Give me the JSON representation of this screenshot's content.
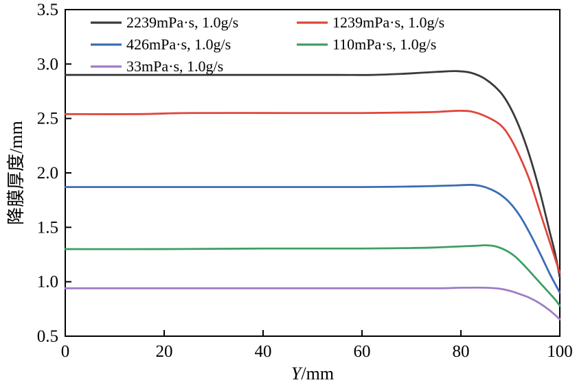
{
  "chart_data": {
    "type": "line",
    "title": "",
    "xlabel_italic": "Y",
    "xlabel_rest": "/mm",
    "ylabel": "降膜厚度/mm",
    "xlim": [
      0,
      100
    ],
    "ylim": [
      0.5,
      3.5
    ],
    "xticks": [
      0,
      20,
      40,
      60,
      80,
      100
    ],
    "yticks": [
      0.5,
      1.0,
      1.5,
      2.0,
      2.5,
      3.0,
      3.5
    ],
    "grid": false,
    "legend_position": "top-inside-two-columns",
    "series": [
      {
        "name": "2239mPa·s, 1.0g/s",
        "color": "#3a3a3a",
        "points": [
          [
            0,
            2.9
          ],
          [
            20,
            2.9
          ],
          [
            40,
            2.9
          ],
          [
            55,
            2.9
          ],
          [
            62,
            2.9
          ],
          [
            68,
            2.91
          ],
          [
            72,
            2.92
          ],
          [
            76,
            2.93
          ],
          [
            79,
            2.935
          ],
          [
            82,
            2.92
          ],
          [
            85,
            2.86
          ],
          [
            88,
            2.74
          ],
          [
            90,
            2.6
          ],
          [
            92,
            2.4
          ],
          [
            94,
            2.14
          ],
          [
            96,
            1.82
          ],
          [
            98,
            1.45
          ],
          [
            99,
            1.27
          ],
          [
            100,
            1.04
          ]
        ]
      },
      {
        "name": "1239mPa·s, 1.0g/s",
        "color": "#e0453a",
        "points": [
          [
            0,
            2.54
          ],
          [
            15,
            2.54
          ],
          [
            25,
            2.55
          ],
          [
            45,
            2.55
          ],
          [
            60,
            2.55
          ],
          [
            70,
            2.555
          ],
          [
            75,
            2.56
          ],
          [
            79,
            2.57
          ],
          [
            82,
            2.565
          ],
          [
            85,
            2.52
          ],
          [
            88,
            2.44
          ],
          [
            90,
            2.32
          ],
          [
            92,
            2.14
          ],
          [
            94,
            1.92
          ],
          [
            96,
            1.64
          ],
          [
            98,
            1.36
          ],
          [
            100,
            1.08
          ]
        ]
      },
      {
        "name": "426mPa·s, 1.0g/s",
        "color": "#3b6cb4",
        "points": [
          [
            0,
            1.87
          ],
          [
            20,
            1.87
          ],
          [
            40,
            1.87
          ],
          [
            60,
            1.87
          ],
          [
            70,
            1.875
          ],
          [
            75,
            1.88
          ],
          [
            79,
            1.885
          ],
          [
            82,
            1.89
          ],
          [
            84,
            1.88
          ],
          [
            86,
            1.85
          ],
          [
            88,
            1.8
          ],
          [
            90,
            1.72
          ],
          [
            92,
            1.6
          ],
          [
            94,
            1.44
          ],
          [
            96,
            1.26
          ],
          [
            98,
            1.07
          ],
          [
            100,
            0.9
          ]
        ]
      },
      {
        "name": "110mPa·s, 1.0g/s",
        "color": "#3f9e63",
        "points": [
          [
            0,
            1.3
          ],
          [
            20,
            1.3
          ],
          [
            40,
            1.305
          ],
          [
            60,
            1.305
          ],
          [
            70,
            1.31
          ],
          [
            75,
            1.315
          ],
          [
            80,
            1.325
          ],
          [
            83,
            1.33
          ],
          [
            85,
            1.335
          ],
          [
            87,
            1.325
          ],
          [
            89,
            1.29
          ],
          [
            91,
            1.23
          ],
          [
            93,
            1.14
          ],
          [
            95,
            1.04
          ],
          [
            97,
            0.94
          ],
          [
            99,
            0.84
          ],
          [
            100,
            0.78
          ]
        ]
      },
      {
        "name": "33mPa·s, 1.0g/s",
        "color": "#a07cc5",
        "points": [
          [
            0,
            0.94
          ],
          [
            20,
            0.94
          ],
          [
            40,
            0.94
          ],
          [
            60,
            0.94
          ],
          [
            75,
            0.94
          ],
          [
            80,
            0.945
          ],
          [
            85,
            0.945
          ],
          [
            88,
            0.935
          ],
          [
            90,
            0.915
          ],
          [
            92,
            0.885
          ],
          [
            94,
            0.85
          ],
          [
            96,
            0.8
          ],
          [
            98,
            0.735
          ],
          [
            100,
            0.655
          ]
        ]
      }
    ]
  },
  "style": {
    "axis_color": "#000000",
    "background": "#ffffff",
    "line_width": 2.8
  }
}
